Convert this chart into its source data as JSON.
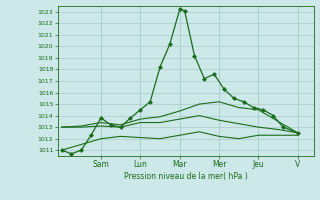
{
  "background_color": "#cce8e8",
  "grid_color": "#aacccc",
  "line_color": "#1a6b1a",
  "marker_color": "#1a6b1a",
  "xlabel_text": "Pression niveau de la mer( hPa )",
  "ylim": [
    1010.5,
    1023.5
  ],
  "yticks": [
    1011,
    1012,
    1013,
    1014,
    1015,
    1016,
    1017,
    1018,
    1019,
    1020,
    1021,
    1022,
    1023
  ],
  "day_labels": [
    "Sam",
    "Lun",
    "Mar",
    "Mer",
    "Jeu",
    "V"
  ],
  "day_positions": [
    2.0,
    4.0,
    6.0,
    8.0,
    10.0,
    12.0
  ],
  "xlim": [
    -0.2,
    12.8
  ],
  "series": [
    {
      "x": [
        0,
        0.5,
        1,
        1.5,
        2,
        2.5,
        3,
        3.5,
        4,
        4.5,
        5,
        5.5,
        6,
        6.25,
        6.75,
        7.25,
        7.75,
        8.25,
        8.75,
        9.25,
        9.75,
        10.25,
        10.75,
        11.25,
        12
      ],
      "y": [
        1011.0,
        1010.7,
        1011.0,
        1012.3,
        1013.8,
        1013.2,
        1013.0,
        1013.8,
        1014.5,
        1015.2,
        1018.2,
        1020.2,
        1023.2,
        1023.1,
        1019.2,
        1017.2,
        1017.6,
        1016.3,
        1015.5,
        1015.2,
        1014.7,
        1014.5,
        1014.0,
        1013.0,
        1012.5
      ],
      "has_markers": true
    },
    {
      "x": [
        0,
        1,
        2,
        3,
        4,
        5,
        6,
        7,
        8,
        9,
        10,
        11,
        12
      ],
      "y": [
        1013.0,
        1013.1,
        1013.4,
        1013.2,
        1013.7,
        1013.9,
        1014.4,
        1015.0,
        1015.2,
        1014.7,
        1014.5,
        1013.5,
        1012.5
      ],
      "has_markers": false
    },
    {
      "x": [
        0,
        1,
        2,
        3,
        4,
        5,
        6,
        7,
        8,
        9,
        10,
        11,
        12
      ],
      "y": [
        1013.0,
        1013.0,
        1013.1,
        1013.0,
        1013.4,
        1013.4,
        1013.7,
        1014.0,
        1013.6,
        1013.3,
        1013.0,
        1012.8,
        1012.5
      ],
      "has_markers": false
    },
    {
      "x": [
        0,
        1,
        2,
        3,
        4,
        5,
        6,
        7,
        8,
        9,
        10,
        11,
        12
      ],
      "y": [
        1011.0,
        1011.5,
        1012.0,
        1012.2,
        1012.1,
        1012.0,
        1012.3,
        1012.6,
        1012.2,
        1012.0,
        1012.3,
        1012.3,
        1012.3
      ],
      "has_markers": false
    }
  ]
}
